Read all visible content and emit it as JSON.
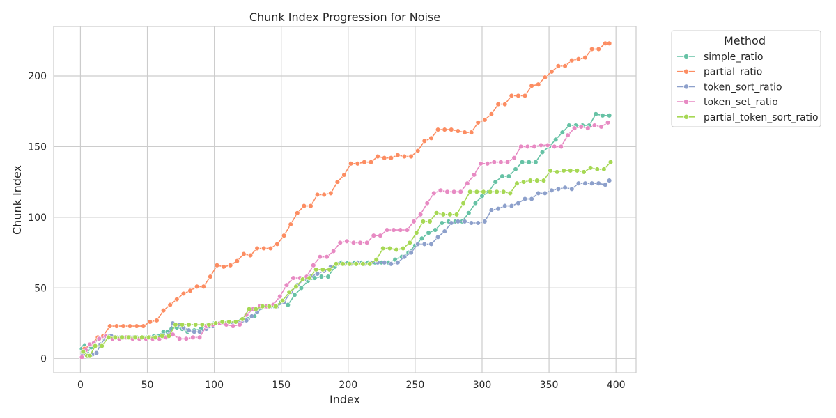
{
  "chart_data": {
    "type": "line",
    "title": "Chunk Index Progression for Noise",
    "xlabel": "Index",
    "ylabel": "Chunk Index",
    "xlim": [
      -20,
      415
    ],
    "ylim": [
      -10,
      235
    ],
    "xticks": [
      0,
      50,
      100,
      150,
      200,
      250,
      300,
      350,
      400
    ],
    "yticks": [
      0,
      50,
      100,
      150,
      200
    ],
    "grid": true,
    "markers": true,
    "legend": {
      "title": "Method",
      "placement": "outside-top-right"
    },
    "series": [
      {
        "name": "simple_ratio",
        "color": "#66c2a5",
        "x": [
          1,
          3,
          5,
          8,
          10,
          13,
          17,
          20,
          25,
          30,
          40,
          50,
          55,
          58,
          62,
          65,
          68,
          72,
          76,
          80,
          85,
          90,
          95,
          100,
          105,
          110,
          115,
          120,
          125,
          130,
          135,
          140,
          145,
          150,
          155,
          160,
          165,
          170,
          175,
          180,
          185,
          190,
          195,
          200,
          205,
          210,
          215,
          220,
          225,
          230,
          235,
          240,
          245,
          250,
          255,
          260,
          265,
          270,
          275,
          280,
          285,
          290,
          295,
          300,
          305,
          310,
          315,
          320,
          325,
          330,
          335,
          340,
          345,
          350,
          355,
          360,
          365,
          370,
          375,
          380,
          385,
          390,
          395
        ],
        "y": [
          7,
          9,
          4,
          8,
          10,
          14,
          15,
          16,
          15,
          15,
          15,
          15,
          16,
          16,
          19,
          19,
          21,
          22,
          21,
          19,
          20,
          21,
          24,
          25,
          25,
          26,
          26,
          27,
          28,
          30,
          36,
          37,
          37,
          40,
          38,
          45,
          50,
          55,
          57,
          58,
          58,
          65,
          68,
          68,
          68,
          68,
          68,
          68,
          68,
          68,
          70,
          72,
          75,
          80,
          85,
          89,
          91,
          96,
          97,
          97,
          97,
          103,
          110,
          115,
          118,
          125,
          129,
          129,
          134,
          139,
          139,
          139,
          146,
          150,
          155,
          160,
          165,
          165,
          165,
          165,
          173,
          172,
          172
        ]
      },
      {
        "name": "partial_ratio",
        "color": "#fc8d62",
        "x": [
          1,
          3,
          8,
          13,
          17,
          22,
          27,
          32,
          37,
          42,
          47,
          52,
          57,
          62,
          67,
          72,
          77,
          82,
          87,
          92,
          97,
          102,
          107,
          112,
          117,
          122,
          127,
          132,
          137,
          142,
          147,
          152,
          157,
          162,
          167,
          172,
          177,
          182,
          187,
          192,
          197,
          202,
          207,
          212,
          217,
          222,
          227,
          232,
          237,
          242,
          247,
          252,
          257,
          262,
          267,
          272,
          277,
          282,
          287,
          292,
          297,
          302,
          307,
          312,
          317,
          322,
          327,
          332,
          337,
          342,
          347,
          352,
          357,
          362,
          367,
          372,
          377,
          382,
          387,
          392,
          395
        ],
        "y": [
          1,
          7,
          10,
          15,
          16,
          23,
          23,
          23,
          23,
          23,
          23,
          26,
          27,
          34,
          38,
          42,
          46,
          48,
          51,
          51,
          58,
          66,
          65,
          66,
          69,
          74,
          73,
          78,
          78,
          78,
          81,
          87,
          95,
          103,
          108,
          108,
          116,
          116,
          117,
          125,
          130,
          138,
          138,
          139,
          139,
          143,
          142,
          142,
          144,
          143,
          143,
          147,
          154,
          156,
          162,
          162,
          162,
          161,
          160,
          160,
          167,
          169,
          173,
          180,
          180,
          186,
          186,
          186,
          193,
          194,
          199,
          203,
          207,
          207,
          211,
          212,
          213,
          219,
          219,
          223,
          223
        ]
      },
      {
        "name": "token_sort_ratio",
        "color": "#8da0cb",
        "x": [
          2,
          4,
          6,
          9,
          12,
          15,
          19,
          23,
          27,
          32,
          37,
          42,
          47,
          52,
          57,
          62,
          66,
          69,
          73,
          77,
          81,
          85,
          89,
          94,
          99,
          104,
          109,
          114,
          119,
          124,
          128,
          132,
          137,
          142,
          147,
          152,
          157,
          162,
          167,
          172,
          177,
          182,
          187,
          192,
          197,
          202,
          207,
          212,
          217,
          222,
          227,
          232,
          237,
          242,
          247,
          252,
          257,
          262,
          267,
          272,
          277,
          282,
          287,
          292,
          297,
          302,
          307,
          312,
          317,
          322,
          327,
          332,
          337,
          342,
          347,
          352,
          357,
          362,
          367,
          372,
          377,
          382,
          387,
          392,
          395
        ],
        "y": [
          3,
          5,
          2,
          3,
          4,
          10,
          15,
          16,
          15,
          15,
          15,
          15,
          15,
          15,
          15,
          16,
          17,
          25,
          24,
          22,
          20,
          19,
          19,
          21,
          23,
          25,
          25,
          25,
          25,
          27,
          30,
          33,
          37,
          37,
          37,
          40,
          47,
          52,
          56,
          58,
          60,
          62,
          65,
          67,
          67,
          67,
          68,
          67,
          68,
          68,
          68,
          67,
          68,
          72,
          75,
          81,
          81,
          81,
          86,
          90,
          96,
          97,
          97,
          96,
          96,
          97,
          105,
          106,
          108,
          108,
          110,
          113,
          113,
          117,
          117,
          119,
          120,
          121,
          120,
          124,
          124,
          124,
          124,
          123,
          126
        ]
      },
      {
        "name": "token_set_ratio",
        "color": "#e78ac3",
        "x": [
          1,
          4,
          7,
          10,
          14,
          19,
          24,
          29,
          34,
          39,
          44,
          49,
          54,
          59,
          64,
          69,
          74,
          79,
          84,
          89,
          94,
          99,
          104,
          109,
          114,
          119,
          124,
          129,
          134,
          139,
          144,
          149,
          154,
          159,
          164,
          169,
          174,
          179,
          184,
          189,
          194,
          199,
          204,
          209,
          214,
          219,
          224,
          229,
          234,
          239,
          244,
          249,
          254,
          259,
          264,
          269,
          274,
          279,
          284,
          289,
          294,
          299,
          304,
          309,
          314,
          319,
          324,
          329,
          334,
          339,
          344,
          349,
          354,
          359,
          364,
          369,
          374,
          379,
          384,
          389,
          394
        ],
        "y": [
          1,
          6,
          10,
          11,
          14,
          16,
          14,
          14,
          15,
          14,
          14,
          14,
          14,
          14,
          15,
          17,
          14,
          14,
          15,
          15,
          23,
          24,
          25,
          24,
          23,
          24,
          31,
          35,
          37,
          37,
          38,
          44,
          52,
          57,
          57,
          58,
          66,
          72,
          72,
          76,
          82,
          83,
          82,
          82,
          82,
          87,
          87,
          91,
          91,
          91,
          91,
          97,
          102,
          110,
          117,
          119,
          118,
          118,
          118,
          124,
          130,
          138,
          138,
          139,
          139,
          139,
          142,
          150,
          150,
          150,
          151,
          151,
          150,
          150,
          158,
          163,
          164,
          163,
          165,
          164,
          167
        ]
      },
      {
        "name": "partial_token_sort_ratio",
        "color": "#a6d854",
        "x": [
          2,
          5,
          7,
          11,
          16,
          21,
          26,
          31,
          36,
          41,
          46,
          51,
          56,
          61,
          66,
          71,
          76,
          81,
          86,
          91,
          96,
          101,
          106,
          111,
          116,
          121,
          126,
          131,
          136,
          141,
          146,
          151,
          156,
          161,
          166,
          171,
          176,
          181,
          186,
          191,
          196,
          201,
          206,
          211,
          216,
          221,
          226,
          231,
          236,
          241,
          246,
          251,
          256,
          261,
          266,
          271,
          276,
          281,
          286,
          291,
          296,
          301,
          306,
          311,
          316,
          321,
          326,
          331,
          336,
          341,
          346,
          351,
          356,
          361,
          366,
          371,
          376,
          381,
          386,
          391,
          396
        ],
        "y": [
          5,
          2,
          2,
          9,
          9,
          15,
          15,
          15,
          15,
          15,
          15,
          15,
          15,
          16,
          16,
          24,
          24,
          24,
          24,
          24,
          24,
          25,
          26,
          26,
          26,
          28,
          35,
          35,
          37,
          37,
          37,
          41,
          47,
          51,
          56,
          57,
          63,
          63,
          63,
          67,
          67,
          67,
          67,
          67,
          67,
          70,
          78,
          78,
          77,
          78,
          82,
          89,
          97,
          97,
          103,
          102,
          102,
          102,
          110,
          118,
          118,
          118,
          118,
          118,
          118,
          117,
          124,
          125,
          126,
          126,
          126,
          133,
          132,
          133,
          133,
          133,
          132,
          135,
          134,
          134,
          139
        ]
      }
    ]
  }
}
